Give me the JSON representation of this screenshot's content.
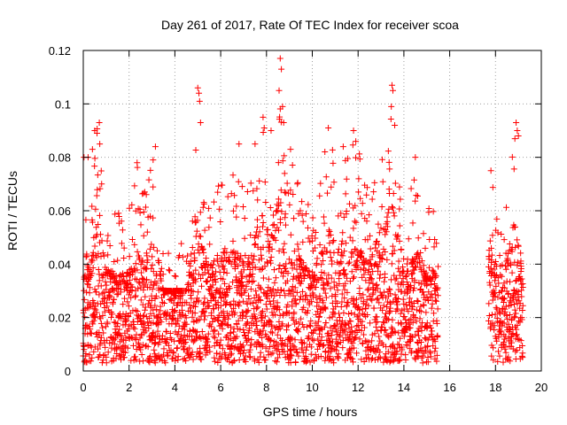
{
  "chart_data": {
    "type": "scatter",
    "title": "Day 261 of 2017, Rate Of TEC Index for receiver scoa",
    "xlabel": "GPS time / hours",
    "ylabel": "ROTI / TECUs",
    "xlim": [
      0,
      20
    ],
    "ylim": [
      0,
      0.12
    ],
    "xticks": [
      "0",
      "2",
      "4",
      "6",
      "8",
      "10",
      "12",
      "14",
      "16",
      "18",
      "20"
    ],
    "yticks": [
      "0",
      "0.02",
      "0.04",
      "0.06",
      "0.08",
      "0.1",
      "0.12"
    ],
    "grid": true,
    "marker": "plus",
    "color": "#ff0000",
    "coverage_segments": [
      [
        0.0,
        15.5
      ],
      [
        17.7,
        19.2
      ]
    ],
    "typical_range": [
      0.003,
      0.03
    ],
    "envelope": [
      [
        0.0,
        0.045
      ],
      [
        0.1,
        0.08
      ],
      [
        0.3,
        0.06
      ],
      [
        0.5,
        0.09
      ],
      [
        0.7,
        0.093
      ],
      [
        1.0,
        0.065
      ],
      [
        1.5,
        0.06
      ],
      [
        2.0,
        0.062
      ],
      [
        2.3,
        0.078
      ],
      [
        2.6,
        0.07
      ],
      [
        3.0,
        0.08
      ],
      [
        3.2,
        0.084
      ],
      [
        3.5,
        0.05
      ],
      [
        4.0,
        0.047
      ],
      [
        4.5,
        0.05
      ],
      [
        5.0,
        0.106
      ],
      [
        5.2,
        0.08
      ],
      [
        5.5,
        0.065
      ],
      [
        5.8,
        0.072
      ],
      [
        6.2,
        0.078
      ],
      [
        6.7,
        0.075
      ],
      [
        7.0,
        0.07
      ],
      [
        7.5,
        0.085
      ],
      [
        7.8,
        0.095
      ],
      [
        8.2,
        0.09
      ],
      [
        8.6,
        0.117
      ],
      [
        9.0,
        0.085
      ],
      [
        9.5,
        0.07
      ],
      [
        10.0,
        0.06
      ],
      [
        10.5,
        0.08
      ],
      [
        10.7,
        0.091
      ],
      [
        11.0,
        0.08
      ],
      [
        11.5,
        0.08
      ],
      [
        11.8,
        0.09
      ],
      [
        12.2,
        0.077
      ],
      [
        12.5,
        0.07
      ],
      [
        13.0,
        0.09
      ],
      [
        13.5,
        0.107
      ],
      [
        13.8,
        0.08
      ],
      [
        14.2,
        0.065
      ],
      [
        14.6,
        0.08
      ],
      [
        15.0,
        0.06
      ],
      [
        15.4,
        0.066
      ],
      [
        17.7,
        0.075
      ],
      [
        18.0,
        0.072
      ],
      [
        18.3,
        0.07
      ],
      [
        18.7,
        0.08
      ],
      [
        18.9,
        0.093
      ],
      [
        19.2,
        0.06
      ]
    ],
    "points": [
      [
        0.03,
        0.08
      ],
      [
        0.21,
        0.08
      ],
      [
        0.4,
        0.083
      ],
      [
        0.5,
        0.09
      ],
      [
        0.6,
        0.089
      ],
      [
        0.7,
        0.093
      ],
      [
        0.72,
        0.085
      ],
      [
        2.35,
        0.078
      ],
      [
        3.15,
        0.084
      ],
      [
        3.05,
        0.079
      ],
      [
        5.0,
        0.106
      ],
      [
        5.05,
        0.104
      ],
      [
        5.08,
        0.101
      ],
      [
        5.12,
        0.093
      ],
      [
        6.8,
        0.085
      ],
      [
        7.5,
        0.085
      ],
      [
        7.85,
        0.095
      ],
      [
        7.9,
        0.091
      ],
      [
        8.2,
        0.09
      ],
      [
        8.6,
        0.117
      ],
      [
        8.65,
        0.113
      ],
      [
        8.55,
        0.105
      ],
      [
        8.7,
        0.099
      ],
      [
        8.75,
        0.093
      ],
      [
        9.05,
        0.083
      ],
      [
        10.7,
        0.091
      ],
      [
        11.35,
        0.084
      ],
      [
        11.8,
        0.09
      ],
      [
        11.9,
        0.086
      ],
      [
        13.48,
        0.107
      ],
      [
        13.52,
        0.105
      ],
      [
        13.45,
        0.099
      ],
      [
        13.6,
        0.092
      ],
      [
        14.5,
        0.08
      ],
      [
        17.8,
        0.075
      ],
      [
        18.9,
        0.093
      ],
      [
        18.95,
        0.09
      ],
      [
        19.0,
        0.088
      ]
    ]
  }
}
